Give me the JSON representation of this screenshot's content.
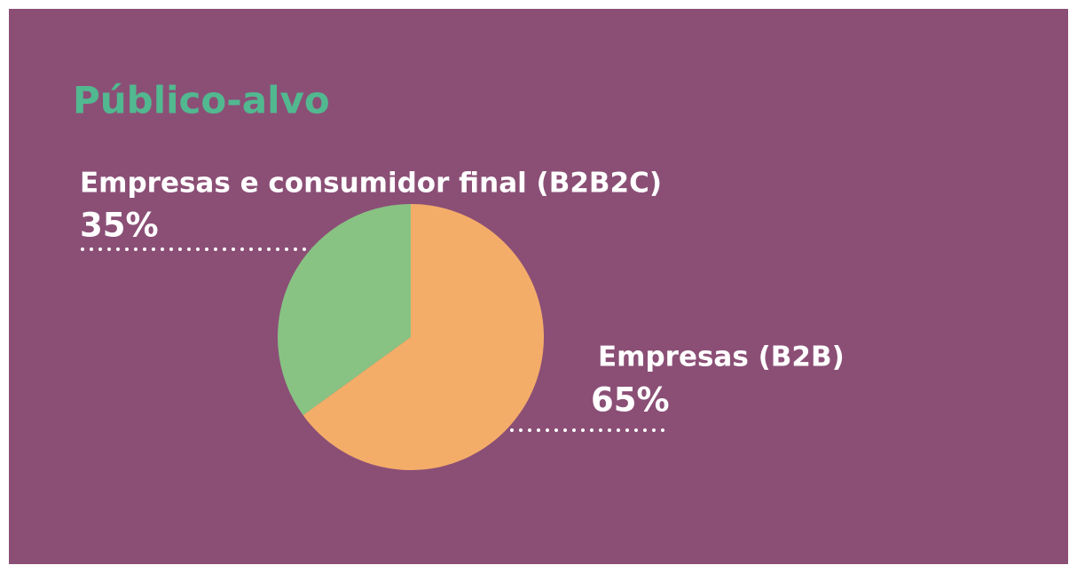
{
  "chart_data": {
    "type": "pie",
    "title": "Público-alvo",
    "categories": [
      "Empresas e consumidor final (B2B2C)",
      "Empresas (B2B)"
    ],
    "values": [
      35,
      65
    ],
    "value_labels": [
      "35%",
      "65%"
    ],
    "colors": [
      "#88c383",
      "#f4ad69"
    ]
  }
}
